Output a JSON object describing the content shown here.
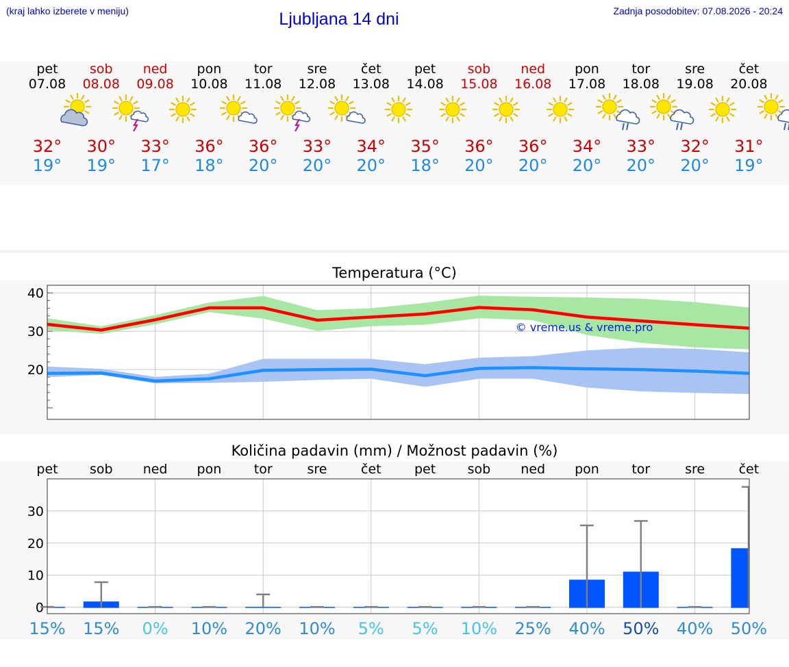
{
  "header": {
    "note_left": "(kraj lahko izberete v meniju)",
    "title": "Ljubljana 14 dni",
    "note_right": "Zadnja posodobitev: 07.08.2026 - 20:24"
  },
  "days": [
    {
      "name": "pet",
      "date": "07.08",
      "weekend": false,
      "icon": "sun-cloud-icon",
      "tmax": "32°",
      "tmin": "19°"
    },
    {
      "name": "sob",
      "date": "08.08",
      "weekend": true,
      "icon": "sun-thunderstorm-icon",
      "tmax": "30°",
      "tmin": "19°"
    },
    {
      "name": "ned",
      "date": "09.08",
      "weekend": true,
      "icon": "sun-icon",
      "tmax": "33°",
      "tmin": "17°"
    },
    {
      "name": "pon",
      "date": "10.08",
      "weekend": false,
      "icon": "sun-small-cloud-icon",
      "tmax": "36°",
      "tmin": "18°"
    },
    {
      "name": "tor",
      "date": "11.08",
      "weekend": false,
      "icon": "sun-thunderstorm-icon",
      "tmax": "36°",
      "tmin": "20°"
    },
    {
      "name": "sre",
      "date": "12.08",
      "weekend": false,
      "icon": "sun-small-cloud-icon",
      "tmax": "33°",
      "tmin": "20°"
    },
    {
      "name": "čet",
      "date": "13.08",
      "weekend": false,
      "icon": "sun-icon",
      "tmax": "34°",
      "tmin": "20°"
    },
    {
      "name": "pet",
      "date": "14.08",
      "weekend": false,
      "icon": "sun-icon",
      "tmax": "35°",
      "tmin": "18°"
    },
    {
      "name": "sob",
      "date": "15.08",
      "weekend": true,
      "icon": "sun-icon",
      "tmax": "36°",
      "tmin": "20°"
    },
    {
      "name": "ned",
      "date": "16.08",
      "weekend": true,
      "icon": "sun-icon",
      "tmax": "36°",
      "tmin": "20°"
    },
    {
      "name": "pon",
      "date": "17.08",
      "weekend": false,
      "icon": "sun-rain-icon",
      "tmax": "34°",
      "tmin": "20°"
    },
    {
      "name": "tor",
      "date": "18.08",
      "weekend": false,
      "icon": "sun-rain-icon",
      "tmax": "33°",
      "tmin": "20°"
    },
    {
      "name": "sre",
      "date": "19.08",
      "weekend": false,
      "icon": "sun-icon",
      "tmax": "32°",
      "tmin": "20°"
    },
    {
      "name": "čet",
      "date": "20.08",
      "weekend": false,
      "icon": "sun-rain-icon",
      "tmax": "31°",
      "tmin": "19°"
    }
  ],
  "colors": {
    "weekend": "#cc0000",
    "max_line": "#ff0000",
    "max_band": "#a8e6a3",
    "min_line": "#1e90ff",
    "min_band": "#a9c4f2",
    "precip_bar": "#0055ff",
    "error_bar": "#808080",
    "header_text": "#0000cc"
  },
  "chart_data": [
    {
      "type": "line",
      "title": "Temperatura (°C)",
      "watermark": "© vreme.us & vreme.pro",
      "x": [
        1,
        2,
        3,
        4,
        5,
        6,
        7,
        8,
        9,
        10,
        11,
        12,
        13,
        14
      ],
      "ylim": [
        7,
        42
      ],
      "yticks": [
        20,
        30,
        40
      ],
      "grid": true,
      "series": [
        {
          "key": "max",
          "values": [
            31.8,
            30.3,
            33.0,
            36.1,
            36.1,
            32.9,
            33.7,
            34.5,
            36.2,
            35.6,
            33.7,
            32.7,
            31.7,
            30.8
          ],
          "low": [
            30.3,
            29.3,
            31.8,
            35.0,
            33.3,
            30.1,
            31.3,
            31.7,
            33.4,
            32.9,
            29.0,
            27.0,
            25.8,
            25.3
          ],
          "high": [
            33.4,
            31.3,
            34.2,
            37.5,
            39.2,
            35.5,
            36.0,
            37.4,
            39.3,
            39.0,
            38.8,
            38.5,
            37.6,
            36.2
          ]
        },
        {
          "key": "min",
          "values": [
            19.0,
            19.1,
            17.0,
            17.6,
            19.8,
            20.0,
            20.1,
            18.4,
            20.3,
            20.5,
            20.2,
            20.0,
            19.6,
            19.0
          ],
          "low": [
            18.0,
            18.6,
            16.4,
            16.5,
            16.8,
            17.3,
            17.6,
            15.5,
            17.6,
            17.6,
            15.3,
            14.3,
            13.9,
            13.6
          ],
          "high": [
            20.8,
            20.2,
            18.1,
            18.9,
            22.8,
            22.8,
            22.8,
            21.4,
            23.1,
            23.5,
            25.0,
            25.7,
            25.4,
            24.5
          ]
        }
      ]
    },
    {
      "type": "bar",
      "title": "Količina padavin (mm) / Možnost padavin (%)",
      "categories": [
        "pet",
        "sob",
        "ned",
        "pon",
        "tor",
        "sre",
        "čet",
        "pet",
        "sob",
        "ned",
        "pon",
        "tor",
        "sre",
        "čet"
      ],
      "values": [
        0.1,
        2.0,
        0,
        0.1,
        0.3,
        0,
        0,
        0,
        0,
        0,
        8.8,
        11.3,
        0,
        18.6
      ],
      "error_high": [
        0.1,
        7.8,
        0.1,
        0.1,
        4.0,
        0.1,
        0.1,
        0.1,
        0.1,
        0.1,
        25.5,
        26.9,
        0.1,
        37.5
      ],
      "ylim": [
        -2,
        40
      ],
      "yticks": [
        0,
        10,
        20,
        30
      ],
      "grid": true,
      "chance": [
        "15%",
        "15%",
        "0%",
        "10%",
        "20%",
        "10%",
        "5%",
        "5%",
        "10%",
        "25%",
        "40%",
        "50%",
        "40%",
        "50%"
      ],
      "chance_colors": [
        "#2e8bd6",
        "#2e8bd6",
        "#45c6e6",
        "#2e8bd6",
        "#2e8bd6",
        "#2e8bd6",
        "#45c6e6",
        "#45c6e6",
        "#45c6e6",
        "#2e8bd6",
        "#2e8bd6",
        "#114fa8",
        "#2e8bd6",
        "#2e8bd6"
      ]
    }
  ]
}
